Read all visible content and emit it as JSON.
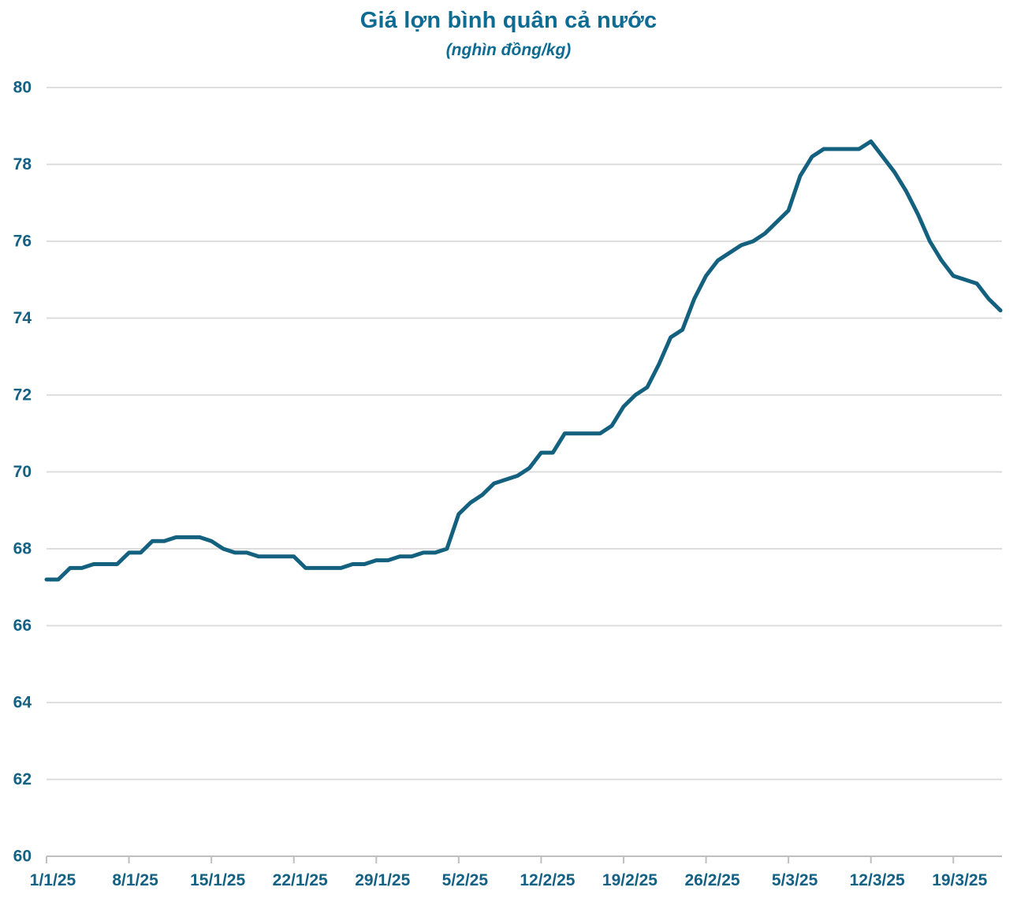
{
  "title": "Giá lợn bình quân cả nước",
  "subtitle": "(nghìn đồng/kg)",
  "colors": {
    "title": "#0e6b92",
    "axis_label": "#136184",
    "line": "#13607f",
    "gridline": "#d9d9d9",
    "axis_line": "#bfbfbf"
  },
  "chart_data": {
    "type": "line",
    "title": "Giá lợn bình quân cả nước",
    "subtitle": "(nghìn đồng/kg)",
    "series_name": "Giá lợn bình quân cả nước (nghìn đồng/kg)",
    "x": [
      "1/1/25",
      "2/1/25",
      "3/1/25",
      "4/1/25",
      "5/1/25",
      "6/1/25",
      "7/1/25",
      "8/1/25",
      "9/1/25",
      "10/1/25",
      "11/1/25",
      "12/1/25",
      "13/1/25",
      "14/1/25",
      "15/1/25",
      "16/1/25",
      "17/1/25",
      "18/1/25",
      "19/1/25",
      "20/1/25",
      "21/1/25",
      "22/1/25",
      "23/1/25",
      "24/1/25",
      "25/1/25",
      "26/1/25",
      "27/1/25",
      "28/1/25",
      "29/1/25",
      "30/1/25",
      "31/1/25",
      "1/2/25",
      "2/2/25",
      "3/2/25",
      "4/2/25",
      "5/2/25",
      "6/2/25",
      "7/2/25",
      "8/2/25",
      "9/2/25",
      "10/2/25",
      "11/2/25",
      "12/2/25",
      "13/2/25",
      "14/2/25",
      "15/2/25",
      "16/2/25",
      "17/2/25",
      "18/2/25",
      "19/2/25",
      "20/2/25",
      "21/2/25",
      "22/2/25",
      "23/2/25",
      "24/2/25",
      "25/2/25",
      "26/2/25",
      "27/2/25",
      "28/2/25",
      "1/3/25",
      "2/3/25",
      "3/3/25",
      "4/3/25",
      "5/3/25",
      "6/3/25",
      "7/3/25",
      "8/3/25",
      "9/3/25",
      "10/3/25",
      "11/3/25",
      "12/3/25",
      "13/3/25",
      "14/3/25",
      "15/3/25",
      "16/3/25",
      "17/3/25",
      "18/3/25",
      "19/3/25",
      "20/3/25",
      "21/3/25",
      "22/3/25",
      "23/3/25"
    ],
    "values": [
      67.2,
      67.2,
      67.5,
      67.5,
      67.6,
      67.6,
      67.6,
      67.9,
      67.9,
      68.2,
      68.2,
      68.3,
      68.3,
      68.3,
      68.2,
      68.0,
      67.9,
      67.9,
      67.8,
      67.8,
      67.8,
      67.8,
      67.5,
      67.5,
      67.5,
      67.5,
      67.6,
      67.6,
      67.7,
      67.7,
      67.8,
      67.8,
      67.9,
      67.9,
      68.0,
      68.9,
      69.2,
      69.4,
      69.7,
      69.8,
      69.9,
      70.1,
      70.5,
      70.5,
      71.0,
      71.0,
      71.0,
      71.0,
      71.2,
      71.7,
      72.0,
      72.2,
      72.8,
      73.5,
      73.7,
      74.5,
      75.1,
      75.5,
      75.7,
      75.9,
      76.0,
      76.2,
      76.5,
      76.8,
      77.7,
      78.2,
      78.4,
      78.4,
      78.4,
      78.4,
      78.6,
      78.2,
      77.8,
      77.3,
      76.7,
      76.0,
      75.5,
      75.1,
      75.0,
      74.9,
      74.5,
      74.2
    ],
    "xtick_labels": [
      "1/1/25",
      "8/1/25",
      "15/1/25",
      "22/1/25",
      "29/1/25",
      "5/2/25",
      "12/2/25",
      "19/2/25",
      "26/2/25",
      "5/3/25",
      "12/3/25",
      "19/3/25"
    ],
    "xtick_every_n_points": 7,
    "ytick_labels": [
      "60",
      "62",
      "64",
      "66",
      "68",
      "70",
      "72",
      "74",
      "76",
      "78",
      "80"
    ],
    "ylim": [
      60,
      80
    ],
    "ytick_step": 2,
    "grid": "horizontal",
    "legend": "none"
  }
}
